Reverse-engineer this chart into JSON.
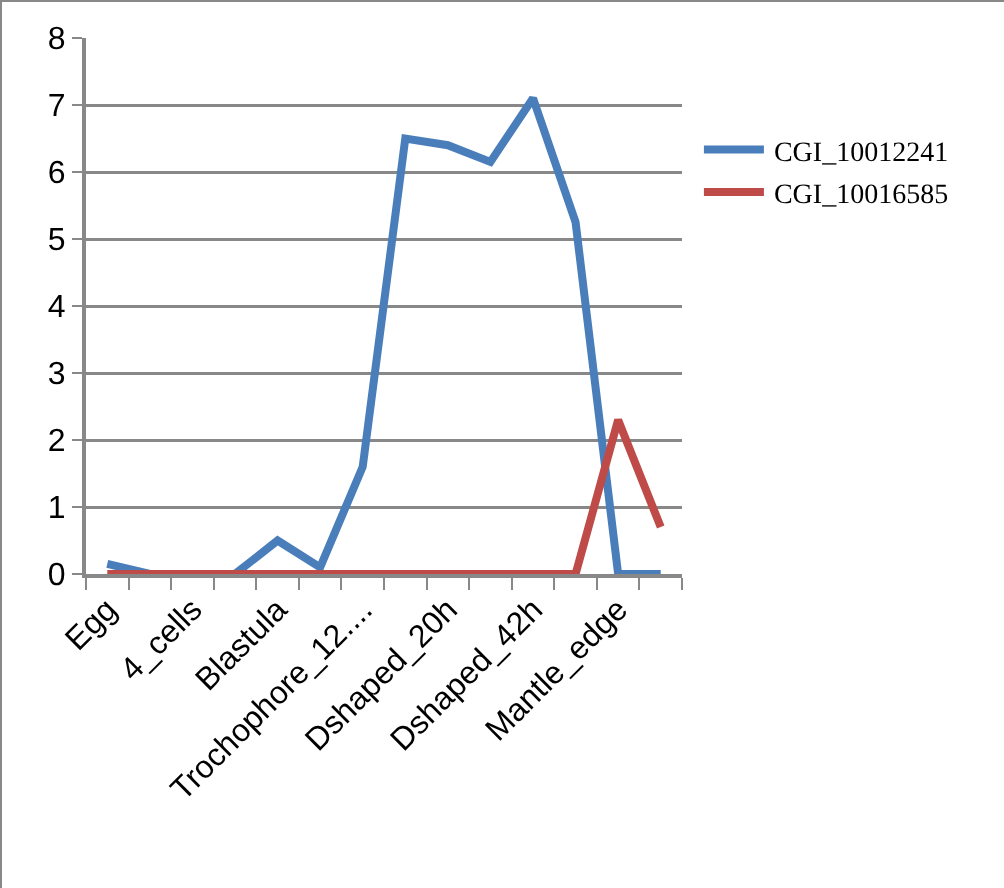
{
  "chart_data": {
    "type": "line",
    "categories": [
      "Egg",
      null,
      "4_cells",
      null,
      "Blastula",
      null,
      "Trochophore_12....",
      null,
      "Dshaped_20h",
      null,
      "Dshaped_42h",
      null,
      "Mantle_edge",
      null
    ],
    "series": [
      {
        "name": "CGI_10012241",
        "color": "#4a7ebb",
        "values": [
          0.15,
          0,
          0,
          0,
          0.5,
          0.1,
          1.6,
          6.5,
          6.4,
          6.15,
          7.1,
          5.25,
          0,
          0
        ]
      },
      {
        "name": "CGI_10016585",
        "color": "#be4b48",
        "values": [
          0,
          0,
          0,
          0,
          0,
          0,
          0,
          0,
          0,
          0,
          0,
          0,
          2.3,
          0.7
        ]
      }
    ],
    "ylim": [
      0,
      8
    ],
    "yticks": [
      0,
      1,
      2,
      3,
      4,
      5,
      6,
      7,
      8
    ],
    "grid": "y",
    "legend": "right",
    "marker": "none",
    "line_style": "solid"
  }
}
